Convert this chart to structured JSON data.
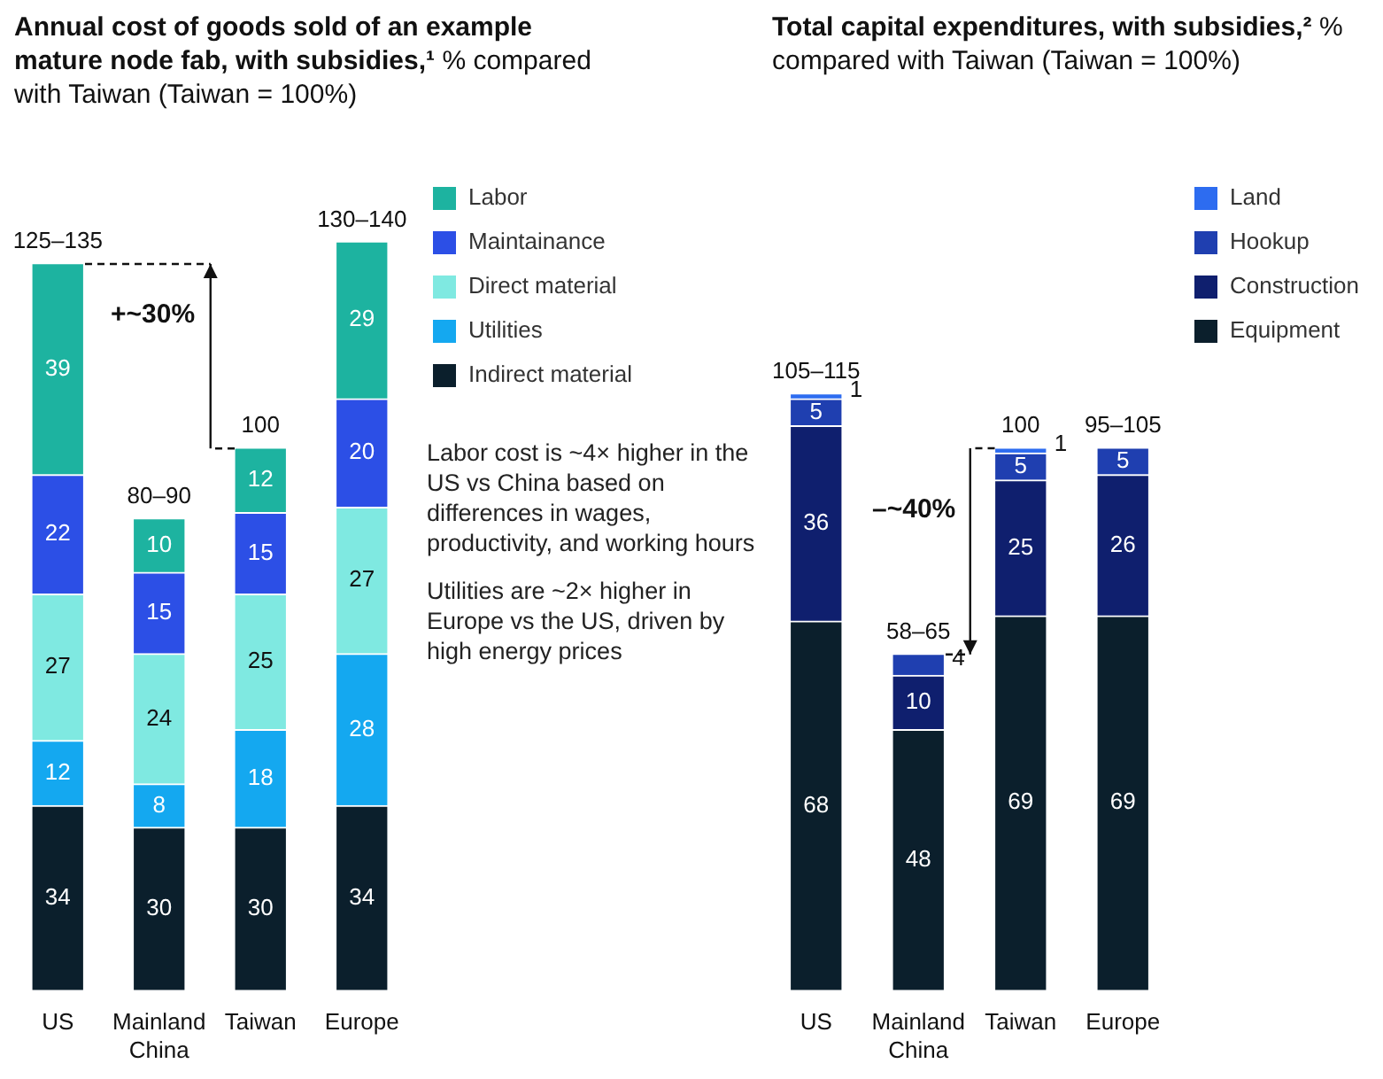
{
  "chart_data": [
    {
      "type": "bar",
      "title": "Annual cost of goods sold of an example mature node fab, with subsidies,¹",
      "subtitle": "% compared with Taiwan (Taiwan = 100%)",
      "categories": [
        "US",
        "Mainland China",
        "Taiwan",
        "Europe"
      ],
      "stacked": true,
      "data_labels": true,
      "legend": "right",
      "tick_labels": "x",
      "series": [
        {
          "name": "Indirect material",
          "color": "#0b1f2c",
          "values": [
            34,
            30,
            30,
            34
          ]
        },
        {
          "name": "Utilities",
          "color": "#14a8f0",
          "values": [
            12,
            8,
            18,
            28
          ]
        },
        {
          "name": "Direct material",
          "color": "#7fe9e1",
          "values": [
            27,
            24,
            25,
            27
          ]
        },
        {
          "name": "Maintainance",
          "color": "#2c4fe6",
          "values": [
            22,
            15,
            15,
            20
          ]
        },
        {
          "name": "Labor",
          "color": "#1db3a0",
          "values": [
            39,
            10,
            12,
            29
          ]
        }
      ],
      "totals": [
        "125–135",
        "80–90",
        "100",
        "130–140"
      ],
      "annotations": [
        "+~30%",
        "Labor cost is ~4× higher in the US vs China based on differences in wages, productivity, and working hours",
        "Utilities are ~2× higher in Europe vs the US, driven by high energy prices"
      ]
    },
    {
      "type": "bar",
      "title": "Total capital expenditures, with subsidies,²",
      "subtitle": "% compared with Taiwan (Taiwan = 100%)",
      "categories": [
        "US",
        "Mainland China",
        "Taiwan",
        "Europe"
      ],
      "stacked": true,
      "data_labels": true,
      "legend": "right",
      "tick_labels": "x",
      "series": [
        {
          "name": "Equipment",
          "color": "#0b1f2c",
          "values": [
            68,
            48,
            69,
            69
          ]
        },
        {
          "name": "Construction",
          "color": "#0f1f6e",
          "values": [
            36,
            10,
            25,
            26
          ]
        },
        {
          "name": "Hookup",
          "color": "#1f3fb0",
          "values": [
            5,
            4,
            5,
            5
          ]
        },
        {
          "name": "Land",
          "color": "#2d6cf0",
          "values": [
            1,
            null,
            1,
            null
          ]
        }
      ],
      "totals": [
        "105–115",
        "58–65",
        "100",
        "95–105"
      ],
      "annotations": [
        "–~40%"
      ]
    }
  ]
}
